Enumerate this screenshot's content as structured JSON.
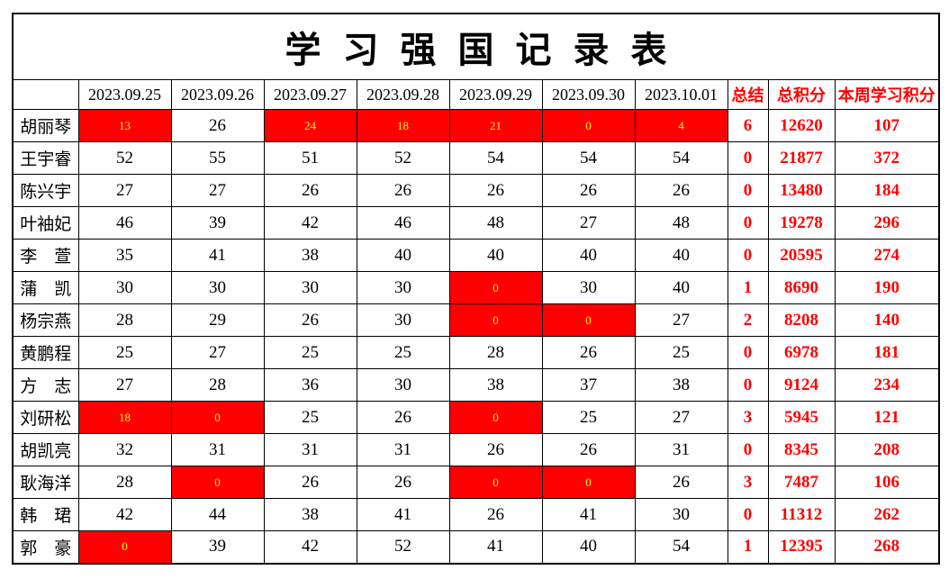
{
  "title": "学 习 强 国 记 录 表",
  "columns": [
    "",
    "2023.09.25",
    "2023.09.26",
    "2023.09.27",
    "2023.09.28",
    "2023.09.29",
    "2023.09.30",
    "2023.10.01",
    "总结",
    "总积分",
    "本周学习积分"
  ],
  "colors": {
    "highlight_cell_bg": "#FF0000",
    "highlight_cell_text": "#FFFF00",
    "accent_text": "#FF0000",
    "border": "#000000"
  },
  "rows": [
    {
      "name": "胡丽琴",
      "values": [
        "13",
        "26",
        "24",
        "18",
        "21",
        "0",
        "4"
      ],
      "highlight": [
        1,
        0,
        1,
        1,
        1,
        1,
        1
      ],
      "summary": "6",
      "total": "12620",
      "week": "107"
    },
    {
      "name": "王宇睿",
      "values": [
        "52",
        "55",
        "51",
        "52",
        "54",
        "54",
        "54"
      ],
      "highlight": [
        0,
        0,
        0,
        0,
        0,
        0,
        0
      ],
      "summary": "0",
      "total": "21877",
      "week": "372"
    },
    {
      "name": "陈兴宇",
      "values": [
        "27",
        "27",
        "26",
        "26",
        "26",
        "26",
        "26"
      ],
      "highlight": [
        0,
        0,
        0,
        0,
        0,
        0,
        0
      ],
      "summary": "0",
      "total": "13480",
      "week": "184"
    },
    {
      "name": "叶袖妃",
      "values": [
        "46",
        "39",
        "42",
        "46",
        "48",
        "27",
        "48"
      ],
      "highlight": [
        0,
        0,
        0,
        0,
        0,
        0,
        0
      ],
      "summary": "0",
      "total": "19278",
      "week": "296"
    },
    {
      "name": "李　萱",
      "values": [
        "35",
        "41",
        "38",
        "40",
        "40",
        "40",
        "40"
      ],
      "highlight": [
        0,
        0,
        0,
        0,
        0,
        0,
        0
      ],
      "summary": "0",
      "total": "20595",
      "week": "274"
    },
    {
      "name": "蒲　凯",
      "values": [
        "30",
        "30",
        "30",
        "30",
        "0",
        "30",
        "40"
      ],
      "highlight": [
        0,
        0,
        0,
        0,
        1,
        0,
        0
      ],
      "summary": "1",
      "total": "8690",
      "week": "190"
    },
    {
      "name": "杨宗燕",
      "values": [
        "28",
        "29",
        "26",
        "30",
        "0",
        "0",
        "27"
      ],
      "highlight": [
        0,
        0,
        0,
        0,
        1,
        1,
        0
      ],
      "summary": "2",
      "total": "8208",
      "week": "140"
    },
    {
      "name": "黄鹏程",
      "values": [
        "25",
        "27",
        "25",
        "25",
        "28",
        "26",
        "25"
      ],
      "highlight": [
        0,
        0,
        0,
        0,
        0,
        0,
        0
      ],
      "summary": "0",
      "total": "6978",
      "week": "181"
    },
    {
      "name": "方　志",
      "values": [
        "27",
        "28",
        "36",
        "30",
        "38",
        "37",
        "38"
      ],
      "highlight": [
        0,
        0,
        0,
        0,
        0,
        0,
        0
      ],
      "summary": "0",
      "total": "9124",
      "week": "234"
    },
    {
      "name": "刘研松",
      "values": [
        "18",
        "0",
        "25",
        "26",
        "0",
        "25",
        "27"
      ],
      "highlight": [
        1,
        1,
        0,
        0,
        1,
        0,
        0
      ],
      "summary": "3",
      "total": "5945",
      "week": "121"
    },
    {
      "name": "胡凯亮",
      "values": [
        "32",
        "31",
        "31",
        "31",
        "26",
        "26",
        "31"
      ],
      "highlight": [
        0,
        0,
        0,
        0,
        0,
        0,
        0
      ],
      "summary": "0",
      "total": "8345",
      "week": "208"
    },
    {
      "name": "耿海洋",
      "values": [
        "28",
        "0",
        "26",
        "26",
        "0",
        "0",
        "26"
      ],
      "highlight": [
        0,
        1,
        0,
        0,
        1,
        1,
        0
      ],
      "summary": "3",
      "total": "7487",
      "week": "106"
    },
    {
      "name": "韩　珺",
      "values": [
        "42",
        "44",
        "38",
        "41",
        "26",
        "41",
        "30"
      ],
      "highlight": [
        0,
        0,
        0,
        0,
        0,
        0,
        0
      ],
      "summary": "0",
      "total": "11312",
      "week": "262"
    },
    {
      "name": "郭　豪",
      "values": [
        "0",
        "39",
        "42",
        "52",
        "41",
        "40",
        "54"
      ],
      "highlight": [
        1,
        0,
        0,
        0,
        0,
        0,
        0
      ],
      "summary": "1",
      "total": "12395",
      "week": "268"
    }
  ]
}
